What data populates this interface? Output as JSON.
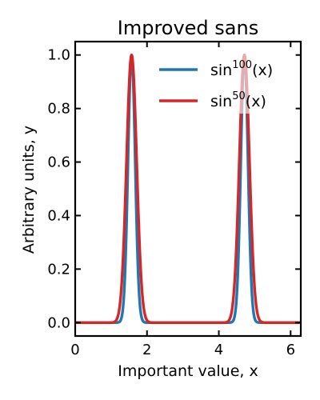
{
  "chart_data": {
    "type": "line",
    "title": "Improved sans",
    "xlabel": "Important value, x",
    "ylabel": "Arbitrary units, y",
    "xlim": [
      0,
      6.283185307
    ],
    "ylim": [
      -0.05,
      1.05
    ],
    "xticks": [
      0,
      2,
      4,
      6
    ],
    "xtick_labels": [
      "0",
      "2",
      "4",
      "6"
    ],
    "yticks": [
      0.0,
      0.2,
      0.4,
      0.6,
      0.8,
      1.0
    ],
    "ytick_labels": [
      "0.0",
      "0.2",
      "0.4",
      "0.6",
      "0.8",
      "1.0"
    ],
    "grid": false,
    "legend_position": "top-right",
    "series": [
      {
        "name": "sin^100(x)",
        "name_base": "sin",
        "name_exp": "100",
        "name_tail": "(x)",
        "color": "#1f77b4",
        "function": "sin(x)^100",
        "x": [
          0,
          0.5,
          1.0,
          1.2,
          1.3,
          1.4,
          1.5,
          1.5708,
          1.65,
          1.75,
          1.85,
          1.95,
          2.15,
          2.5,
          3.0,
          3.5,
          4.0,
          4.2,
          4.4,
          4.5,
          4.6,
          4.7124,
          4.8,
          4.9,
          5.0,
          5.2,
          5.5,
          6.0,
          6.2832
        ],
        "y": [
          0.0,
          0.0,
          0.0,
          0.0009,
          0.0291,
          0.2117,
          0.7787,
          1.0,
          0.7317,
          0.1977,
          0.0228,
          0.0003,
          0.0,
          0.0,
          0.0,
          0.0,
          0.0,
          0.0003,
          0.0206,
          0.107,
          0.3669,
          1.0,
          0.6784,
          0.1714,
          0.016,
          0.0,
          0.0,
          0.0,
          0.0
        ]
      },
      {
        "name": "sin^50(x)",
        "name_base": "sin",
        "name_exp": "50",
        "name_tail": "(x)",
        "color": "#d62728",
        "function": "sin(x)^50",
        "x": [
          0,
          0.5,
          0.7,
          0.8,
          0.9,
          1.0,
          1.1,
          1.2,
          1.3,
          1.4,
          1.5,
          1.5708,
          1.65,
          1.75,
          1.85,
          2.0,
          2.2,
          2.4,
          2.6,
          3.0,
          3.5,
          3.8,
          4.0,
          4.1,
          4.2,
          4.3,
          4.4,
          4.5,
          4.6,
          4.7124,
          4.8,
          4.9,
          5.0,
          5.1,
          5.2,
          5.4,
          5.6,
          6.0,
          6.2832
        ],
        "y": [
          0.0,
          0.0,
          0.0,
          0.0001,
          0.0014,
          0.0167,
          0.0594,
          0.0307,
          0.1707,
          0.4601,
          0.8825,
          1.0,
          0.8554,
          0.4447,
          0.1511,
          0.0178,
          0.0007,
          0.0,
          0.0,
          0.0,
          0.0,
          0.0,
          0.0,
          0.0018,
          0.0167,
          0.0627,
          0.1434,
          0.3271,
          0.6057,
          1.0,
          0.8237,
          0.414,
          0.1263,
          0.0342,
          0.0072,
          0.0002,
          0.0,
          0.0,
          0.0
        ]
      }
    ]
  }
}
